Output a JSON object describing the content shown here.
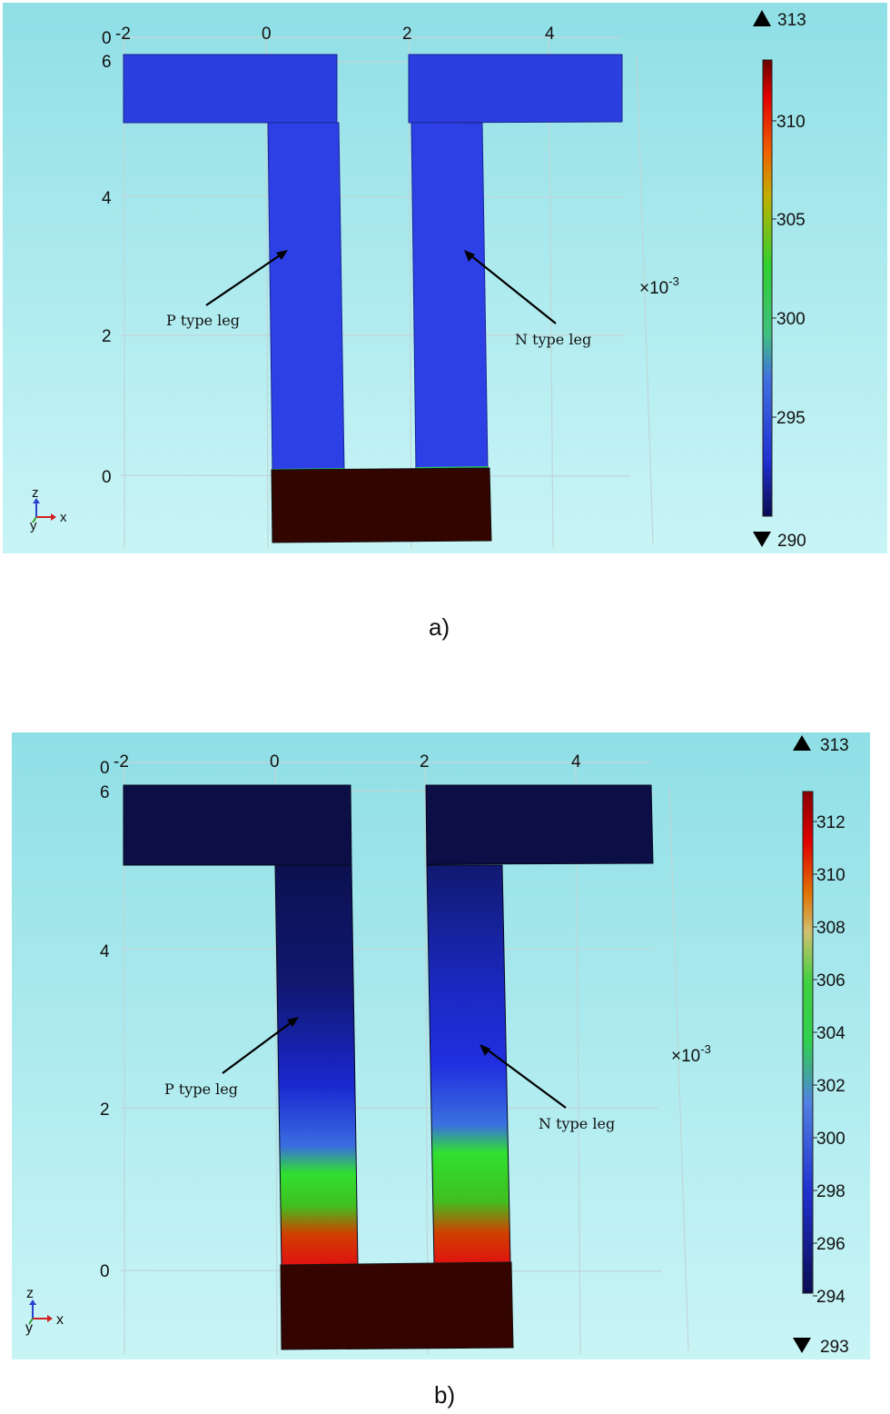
{
  "panels": [
    {
      "caption": "a)",
      "x_ticks": [
        "-2",
        "0",
        "2",
        "4"
      ],
      "z_ticks": [
        "6",
        "4",
        "2",
        "0"
      ],
      "axis_origin_label": "0",
      "scale_label_base": "×10",
      "scale_label_exp": "-3",
      "triad": {
        "z": "z",
        "y": "y",
        "x": "x"
      },
      "p_leg_label": "P type leg",
      "n_leg_label": "N type leg",
      "colorbar": {
        "max_label": "313",
        "min_label": "290",
        "ticks": [
          "310",
          "305",
          "300",
          "295"
        ]
      },
      "colors": {
        "top_electrode": "#2b3ee0",
        "leg": "#2d40e6",
        "bottom_electrode": "#330500"
      }
    },
    {
      "caption": "b)",
      "x_ticks": [
        "-2",
        "0",
        "2",
        "4"
      ],
      "z_ticks": [
        "6",
        "4",
        "2",
        "0"
      ],
      "axis_origin_label": "0",
      "scale_label_base": "×10",
      "scale_label_exp": "-3",
      "triad": {
        "z": "z",
        "y": "y",
        "x": "x"
      },
      "p_leg_label": "P type leg",
      "n_leg_label": "N type leg",
      "colorbar": {
        "max_label": "313",
        "min_label": "293",
        "ticks": [
          "312",
          "310",
          "308",
          "306",
          "304",
          "302",
          "300",
          "298",
          "296",
          "294"
        ]
      },
      "colors": {
        "top_electrode": "#0c0f45",
        "bottom_electrode": "#340500"
      }
    }
  ]
}
